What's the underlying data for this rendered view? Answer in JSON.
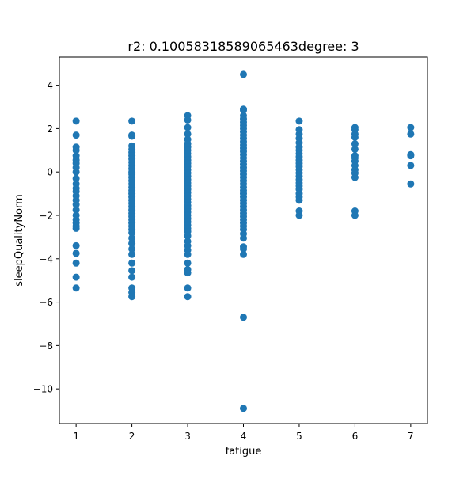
{
  "chart_data": {
    "type": "scatter",
    "title": "r2: 0.10058318589065463degree: 3",
    "xlabel": "fatigue",
    "ylabel": "sleepQualityNorm",
    "xlim": [
      0.7,
      7.3
    ],
    "ylim": [
      -11.6,
      5.3
    ],
    "x_ticks": [
      1,
      2,
      3,
      4,
      5,
      6,
      7
    ],
    "x_tick_labels": [
      "1",
      "2",
      "3",
      "4",
      "5",
      "6",
      "7"
    ],
    "y_ticks": [
      4,
      2,
      0,
      -2,
      -4,
      -6,
      -8,
      -10
    ],
    "y_tick_labels": [
      "4",
      "2",
      "0",
      "−2",
      "−4",
      "−6",
      "−8",
      "−10"
    ],
    "grid": false,
    "marker_color": "#1f77b4",
    "points": [
      {
        "x": 1,
        "y": [
          2.35,
          1.7,
          1.15,
          1.0,
          0.75,
          0.55,
          0.4,
          0.2,
          0.0,
          -0.3,
          -0.55,
          -0.75,
          -0.9,
          -1.1,
          -1.3,
          -1.5,
          -1.75,
          -2.0,
          -2.2,
          -2.35,
          -2.5,
          -2.6,
          -3.4,
          -3.75,
          -4.2,
          -4.85,
          -5.35
        ]
      },
      {
        "x": 2,
        "y": [
          2.35,
          1.7,
          1.65,
          1.2,
          1.05,
          0.9,
          0.75,
          0.6,
          0.45,
          0.3,
          0.15,
          0.0,
          -0.1,
          -0.25,
          -0.4,
          -0.55,
          -0.7,
          -0.85,
          -1.0,
          -1.15,
          -1.3,
          -1.45,
          -1.6,
          -1.75,
          -1.9,
          -2.05,
          -2.2,
          -2.35,
          -2.5,
          -2.65,
          -2.8,
          -3.05,
          -3.3,
          -3.55,
          -3.8,
          -4.2,
          -4.55,
          -4.85,
          -5.35,
          -5.55,
          -5.75
        ]
      },
      {
        "x": 3,
        "y": [
          2.6,
          2.4,
          2.05,
          1.75,
          1.5,
          1.3,
          1.15,
          1.0,
          0.85,
          0.7,
          0.55,
          0.4,
          0.25,
          0.1,
          -0.05,
          -0.2,
          -0.35,
          -0.5,
          -0.65,
          -0.8,
          -0.95,
          -1.1,
          -1.25,
          -1.4,
          -1.55,
          -1.7,
          -1.85,
          -2.0,
          -2.15,
          -2.3,
          -2.45,
          -2.6,
          -2.75,
          -2.95,
          -3.2,
          -3.4,
          -3.6,
          -3.8,
          -4.2,
          -4.5,
          -4.65,
          -5.35,
          -5.75
        ]
      },
      {
        "x": 4,
        "y": [
          4.5,
          2.9,
          2.85,
          2.6,
          2.45,
          2.3,
          2.15,
          2.0,
          1.85,
          1.7,
          1.55,
          1.4,
          1.25,
          1.1,
          0.95,
          0.8,
          0.65,
          0.5,
          0.35,
          0.2,
          0.05,
          -0.1,
          -0.25,
          -0.4,
          -0.55,
          -0.7,
          -0.85,
          -1.0,
          -1.15,
          -1.3,
          -1.45,
          -1.6,
          -1.75,
          -1.9,
          -2.05,
          -2.2,
          -2.35,
          -2.5,
          -2.65,
          -2.85,
          -3.05,
          -3.45,
          -3.55,
          -3.8,
          -6.7,
          -10.9
        ]
      },
      {
        "x": 5,
        "y": [
          2.35,
          1.95,
          1.75,
          1.55,
          1.35,
          1.15,
          1.0,
          0.85,
          0.7,
          0.55,
          0.4,
          0.25,
          0.1,
          -0.05,
          -0.2,
          -0.35,
          -0.5,
          -0.65,
          -0.8,
          -1.0,
          -1.15,
          -1.3,
          -1.8,
          -2.0
        ]
      },
      {
        "x": 6,
        "y": [
          2.05,
          1.95,
          1.75,
          1.6,
          1.3,
          1.05,
          0.75,
          0.65,
          0.5,
          0.3,
          0.1,
          -0.05,
          -0.25,
          -1.8,
          -2.0
        ]
      },
      {
        "x": 7,
        "y": [
          2.05,
          1.75,
          0.8,
          0.75,
          0.3,
          -0.55
        ]
      }
    ]
  }
}
